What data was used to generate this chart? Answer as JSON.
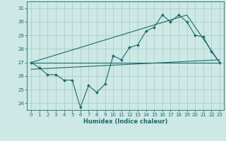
{
  "xlabel": "Humidex (Indice chaleur)",
  "ylabel": "",
  "bg_color": "#cde8e5",
  "line_color": "#1a6b6b",
  "grid_color": "#aacfcc",
  "xlim": [
    -0.5,
    23.5
  ],
  "ylim": [
    23.5,
    31.5
  ],
  "yticks": [
    24,
    25,
    26,
    27,
    28,
    29,
    30,
    31
  ],
  "xticks": [
    0,
    1,
    2,
    3,
    4,
    5,
    6,
    7,
    8,
    9,
    10,
    11,
    12,
    13,
    14,
    15,
    16,
    17,
    18,
    19,
    20,
    21,
    22,
    23
  ],
  "data_x": [
    0,
    1,
    2,
    3,
    4,
    5,
    6,
    7,
    8,
    9,
    10,
    11,
    12,
    13,
    14,
    15,
    16,
    17,
    18,
    19,
    20,
    21,
    22,
    23
  ],
  "data_y": [
    27.0,
    26.6,
    26.1,
    26.1,
    25.7,
    25.7,
    23.7,
    25.3,
    24.8,
    25.4,
    27.5,
    27.2,
    28.1,
    28.3,
    29.3,
    29.6,
    30.5,
    30.0,
    30.5,
    30.0,
    29.0,
    28.9,
    27.8,
    27.0
  ],
  "trend1_x": [
    0,
    23
  ],
  "trend1_y": [
    27.0,
    27.0
  ],
  "trend2_x": [
    0,
    19,
    23
  ],
  "trend2_y": [
    27.0,
    30.5,
    27.0
  ],
  "trend3_x": [
    0,
    23
  ],
  "trend3_y": [
    26.5,
    27.2
  ]
}
